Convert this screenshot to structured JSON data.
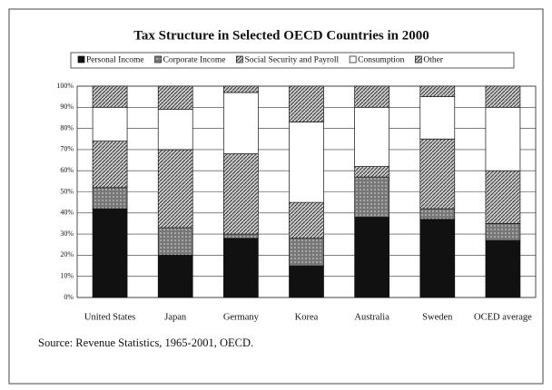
{
  "chart_data": {
    "type": "stacked_bar",
    "title": "Tax Structure in Selected OECD Countries in 2000",
    "source": "Source: Revenue Statistics, 1965-2001, OECD.",
    "categories": [
      "United States",
      "Japan",
      "Germany",
      "Korea",
      "Australia",
      "Sweden",
      "OCED average"
    ],
    "series": [
      {
        "name": "Personal Income",
        "color": "#111111",
        "values": [
          42,
          20,
          28,
          15,
          38,
          37,
          27
        ]
      },
      {
        "name": "Corporate Income",
        "color": "#444444",
        "values": [
          10,
          13,
          2,
          13,
          19,
          5,
          8
        ]
      },
      {
        "name": "Social Security and Payroll",
        "color": "#8a8a8a",
        "values": [
          22,
          37,
          38,
          17,
          5,
          33,
          25
        ]
      },
      {
        "name": "Consumption",
        "color": "#ffffff",
        "values": [
          16,
          19,
          29,
          38,
          28,
          20,
          30
        ]
      },
      {
        "name": "Other",
        "color": "#a0a0a0",
        "values": [
          10,
          11,
          3,
          17,
          10,
          5,
          10
        ]
      }
    ],
    "ylim": [
      0,
      100
    ],
    "yticks": [
      {
        "value": 0,
        "label": "0%"
      },
      {
        "value": 10,
        "label": "10%"
      },
      {
        "value": 20,
        "label": "20%"
      },
      {
        "value": 30,
        "label": "30%"
      },
      {
        "value": 40,
        "label": "40%"
      },
      {
        "value": 50,
        "label": "50%"
      },
      {
        "value": 60,
        "label": "60%"
      },
      {
        "value": 70,
        "label": "70%"
      },
      {
        "value": 80,
        "label": "80%"
      },
      {
        "value": 90,
        "label": "90%"
      },
      {
        "value": 100,
        "label": "100%"
      }
    ],
    "grid": true
  }
}
